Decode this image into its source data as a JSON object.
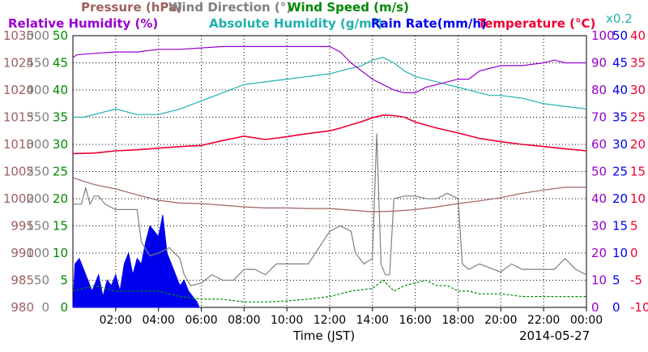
{
  "chart_data": {
    "type": "line",
    "x_label": "Time (JST)",
    "date": "2014-05-27",
    "x_ticks": [
      "02:00",
      "04:00",
      "06:00",
      "08:00",
      "10:00",
      "12:00",
      "14:00",
      "16:00",
      "18:00",
      "20:00",
      "22:00",
      "00:00"
    ],
    "x_range_hours": [
      0,
      24
    ],
    "axes": {
      "pressure": {
        "name": "Pressure (hPa)",
        "color": "#a06060",
        "ticks": [
          "1030",
          "1025",
          "1020",
          "1015",
          "1010",
          "1005",
          "1000",
          "995",
          "990",
          "985",
          "980"
        ],
        "range": [
          980,
          1030
        ]
      },
      "wind_dir": {
        "name": "Wind Direction (°)",
        "color": "#808080",
        "ticks": [
          "500",
          "450",
          "400",
          "350",
          "300",
          "250",
          "200",
          "150",
          "100",
          "50",
          "0"
        ],
        "range": [
          0,
          500
        ]
      },
      "wind_speed": {
        "name": "Wind Speed (m/s)",
        "color": "#008800",
        "ticks": [
          "50",
          "45",
          "40",
          "35",
          "30",
          "25",
          "20",
          "15",
          "10",
          "5",
          "0"
        ],
        "range": [
          0,
          50
        ]
      },
      "humidity": {
        "name": "Relative Humidity (%)",
        "color": "#9900cc",
        "ticks": [
          "100",
          "90",
          "80",
          "70",
          "60",
          "50",
          "40",
          "30",
          "20",
          "10",
          "0"
        ],
        "range": [
          0,
          100
        ]
      },
      "abs_humidity": {
        "name": "Absolute Humidity (g/m³)",
        "color": "#20b0b0",
        "scale_note": "x0.2"
      },
      "rain": {
        "name": "Rain Rate(mm/h)",
        "color": "#0000ee",
        "ticks": [
          "50",
          "45",
          "40",
          "35",
          "30",
          "25",
          "20",
          "15",
          "10",
          "5",
          "0"
        ],
        "range": [
          0,
          50
        ]
      },
      "temperature": {
        "name": "Temperature (°C)",
        "color": "#ee0033",
        "ticks": [
          "40",
          "35",
          "30",
          "25",
          "20",
          "15",
          "10",
          "5",
          "0",
          "-5",
          "-10"
        ],
        "range": [
          -10,
          40
        ]
      }
    },
    "legend_row1": [
      {
        "text": "Pressure (hPa)",
        "color": "#a06060"
      },
      {
        "text": "Wind Direction (°)",
        "color": "#808080"
      },
      {
        "text": "Wind Speed (m/s)",
        "color": "#008800"
      }
    ],
    "legend_row2": [
      {
        "text": "Relative Humidity (%)",
        "color": "#9900cc"
      },
      {
        "text": "Absolute Humidity (g/m",
        "sup": "3",
        "tail": ")",
        "color": "#20b0b0"
      },
      {
        "text": "Rain Rate(mm/h)",
        "color": "#0000ee"
      },
      {
        "text": "Temperature (°C)",
        "color": "#ee0033"
      }
    ],
    "x02": "x0.2",
    "series": [
      {
        "key": "temperature",
        "axis": "temperature",
        "color": "#ee0033",
        "x": [
          0,
          1,
          2,
          3,
          4,
          5,
          6,
          7,
          8,
          9,
          10,
          11,
          12,
          12.5,
          13,
          13.5,
          14,
          14.5,
          15,
          15.5,
          16,
          17,
          18,
          19,
          20,
          21,
          22,
          23,
          24
        ],
        "y": [
          18.3,
          18.4,
          18.8,
          19.0,
          19.3,
          19.6,
          19.8,
          20.7,
          21.5,
          20.9,
          21.4,
          22.0,
          22.5,
          23.0,
          23.6,
          24.2,
          24.9,
          25.4,
          25.3,
          25.0,
          24.1,
          23.0,
          22.1,
          21.1,
          20.5,
          20.0,
          19.6,
          19.2,
          18.8
        ]
      },
      {
        "key": "humidity",
        "axis": "humidity",
        "color": "#9900cc",
        "x": [
          0,
          0.2,
          1,
          2,
          3,
          4,
          5,
          6,
          7,
          8,
          9,
          10,
          11,
          12,
          12.5,
          13,
          13.5,
          14,
          14.5,
          15,
          15.5,
          16,
          16.5,
          17,
          18,
          18.5,
          19,
          20,
          21,
          22,
          22.5,
          23,
          24
        ],
        "y": [
          92,
          93,
          93.5,
          94,
          94,
          95,
          95,
          95.5,
          96,
          96,
          96,
          96,
          96,
          96,
          94,
          90,
          87,
          84,
          82,
          80,
          79,
          79,
          81,
          82,
          84,
          84,
          87,
          89,
          89,
          90,
          91,
          90,
          90
        ]
      },
      {
        "key": "abs_humidity",
        "axis": "humidity",
        "color": "#20b0b0",
        "x": [
          0,
          0.5,
          1,
          2,
          3,
          4,
          5,
          6,
          7,
          8,
          9,
          10,
          11,
          12,
          12.5,
          13,
          13.5,
          14,
          14.5,
          15,
          15.5,
          16,
          16.5,
          17,
          17.5,
          18,
          19,
          19.5,
          20,
          21,
          22,
          23,
          24
        ],
        "y": [
          70,
          70,
          71,
          73,
          71,
          71,
          73,
          76,
          79,
          82,
          83,
          84,
          85,
          86,
          87,
          88,
          89,
          91,
          92,
          90,
          87,
          85,
          84,
          83,
          82,
          81,
          79,
          78,
          78,
          77,
          75,
          74,
          73
        ]
      },
      {
        "key": "pressure",
        "axis": "pressure",
        "color": "#a06060",
        "x": [
          0,
          0.5,
          1,
          2,
          3,
          4,
          5,
          6,
          7,
          8,
          9,
          10,
          11,
          12,
          13,
          14,
          15,
          16,
          17,
          18,
          19,
          20,
          21,
          22,
          23,
          24
        ],
        "y": [
          1003.9,
          1003.2,
          1002.6,
          1001.8,
          1000.7,
          999.7,
          999.2,
          999.1,
          998.8,
          998.5,
          998.3,
          998.3,
          998.2,
          998.2,
          997.9,
          997.6,
          997.7,
          998.0,
          998.5,
          999.1,
          999.6,
          1000.2,
          1001.0,
          1001.6,
          1002.1,
          1002.1
        ]
      },
      {
        "key": "wind_dir",
        "axis": "wind_dir",
        "color": "#808080",
        "x": [
          0,
          0.4,
          0.6,
          0.8,
          1.0,
          1.2,
          1.5,
          2,
          2.5,
          3,
          3.2,
          3.6,
          4,
          4.5,
          5,
          5.2,
          5.5,
          6,
          6.5,
          7,
          7.5,
          8,
          8.5,
          9,
          9.5,
          10,
          11,
          12,
          12.5,
          13,
          13.2,
          13.6,
          14,
          14.2,
          14.4,
          14.6,
          14.8,
          15,
          15.5,
          16,
          16.5,
          17,
          17.5,
          18,
          18.2,
          18.5,
          19,
          20,
          20.5,
          21,
          22,
          22.5,
          23,
          23.5,
          24
        ],
        "y": [
          190,
          190,
          220,
          190,
          205,
          205,
          190,
          180,
          180,
          180,
          120,
          95,
          100,
          110,
          90,
          60,
          40,
          45,
          60,
          50,
          50,
          70,
          70,
          60,
          80,
          80,
          80,
          140,
          150,
          140,
          100,
          80,
          90,
          320,
          80,
          60,
          60,
          200,
          205,
          205,
          200,
          200,
          210,
          200,
          80,
          70,
          80,
          65,
          80,
          70,
          70,
          70,
          90,
          70,
          60
        ]
      },
      {
        "key": "wind_speed",
        "axis": "wind_speed",
        "color": "#008800",
        "x": [
          0,
          0.5,
          1,
          2,
          3,
          4,
          5,
          6,
          7,
          8,
          9,
          10,
          11,
          12,
          13,
          14,
          14.5,
          15,
          15.5,
          16,
          16.5,
          17,
          17.5,
          18,
          18.5,
          19,
          20,
          21,
          22,
          23,
          24
        ],
        "y": [
          3,
          3.5,
          4,
          3,
          3,
          3,
          2,
          1.5,
          1.5,
          1,
          1,
          1.2,
          1.5,
          2,
          3,
          3.5,
          5,
          3,
          4,
          4.5,
          5,
          4,
          4,
          3,
          3,
          2.5,
          2.5,
          2,
          2,
          2,
          2
        ]
      },
      {
        "key": "rain",
        "axis": "rain",
        "color": "#0000ee",
        "fill": true,
        "x": [
          0,
          0.1,
          0.3,
          0.5,
          0.7,
          0.9,
          1.0,
          1.2,
          1.4,
          1.6,
          1.8,
          2.0,
          2.2,
          2.4,
          2.6,
          2.8,
          3.0,
          3.2,
          3.4,
          3.6,
          3.8,
          4.0,
          4.2,
          4.4,
          4.6,
          4.8,
          5.0,
          5.2,
          5.4,
          5.6,
          5.8,
          5.9
        ],
        "y": [
          0,
          8,
          9,
          7,
          5,
          3,
          4,
          6,
          2,
          5,
          4,
          6,
          3,
          8,
          10,
          6,
          9,
          8,
          12,
          15,
          14,
          13,
          17,
          10,
          8,
          6,
          4,
          5,
          3,
          2,
          1,
          0
        ]
      }
    ]
  }
}
